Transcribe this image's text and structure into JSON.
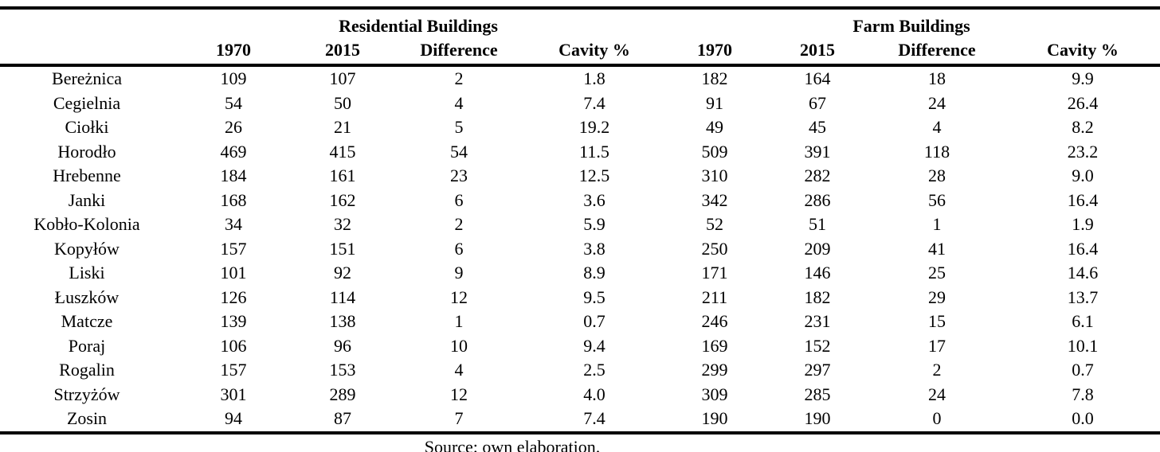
{
  "table": {
    "group_headers": [
      {
        "label": "Residential Buildings"
      },
      {
        "label": "Farm Buildings"
      }
    ],
    "column_headers": [
      "1970",
      "2015",
      "Difference",
      "Cavity %",
      "1970",
      "2015",
      "Difference",
      "Cavity %"
    ],
    "rows": [
      {
        "village": "Bereżnica",
        "values": [
          "109",
          "107",
          "2",
          "1.8",
          "182",
          "164",
          "18",
          "9.9"
        ]
      },
      {
        "village": "Cegielnia",
        "values": [
          "54",
          "50",
          "4",
          "7.4",
          "91",
          "67",
          "24",
          "26.4"
        ]
      },
      {
        "village": "Ciołki",
        "values": [
          "26",
          "21",
          "5",
          "19.2",
          "49",
          "45",
          "4",
          "8.2"
        ]
      },
      {
        "village": "Horodło",
        "values": [
          "469",
          "415",
          "54",
          "11.5",
          "509",
          "391",
          "118",
          "23.2"
        ]
      },
      {
        "village": "Hrebenne",
        "values": [
          "184",
          "161",
          "23",
          "12.5",
          "310",
          "282",
          "28",
          "9.0"
        ]
      },
      {
        "village": "Janki",
        "values": [
          "168",
          "162",
          "6",
          "3.6",
          "342",
          "286",
          "56",
          "16.4"
        ]
      },
      {
        "village": "Kobło-Kolonia",
        "values": [
          "34",
          "32",
          "2",
          "5.9",
          "52",
          "51",
          "1",
          "1.9"
        ]
      },
      {
        "village": "Kopyłów",
        "values": [
          "157",
          "151",
          "6",
          "3.8",
          "250",
          "209",
          "41",
          "16.4"
        ]
      },
      {
        "village": "Liski",
        "values": [
          "101",
          "92",
          "9",
          "8.9",
          "171",
          "146",
          "25",
          "14.6"
        ]
      },
      {
        "village": "Łuszków",
        "values": [
          "126",
          "114",
          "12",
          "9.5",
          "211",
          "182",
          "29",
          "13.7"
        ]
      },
      {
        "village": "Matcze",
        "values": [
          "139",
          "138",
          "1",
          "0.7",
          "246",
          "231",
          "15",
          "6.1"
        ]
      },
      {
        "village": "Poraj",
        "values": [
          "106",
          "96",
          "10",
          "9.4",
          "169",
          "152",
          "17",
          "10.1"
        ]
      },
      {
        "village": "Rogalin",
        "values": [
          "157",
          "153",
          "4",
          "2.5",
          "299",
          "297",
          "2",
          "0.7"
        ]
      },
      {
        "village": "Strzyżów",
        "values": [
          "301",
          "289",
          "12",
          "4.0",
          "309",
          "285",
          "24",
          "7.8"
        ]
      },
      {
        "village": "Zosin",
        "values": [
          "94",
          "87",
          "7",
          "7.4",
          "190",
          "190",
          "0",
          "0.0"
        ]
      }
    ]
  },
  "footer": {
    "source": "Source: own elaboration."
  }
}
